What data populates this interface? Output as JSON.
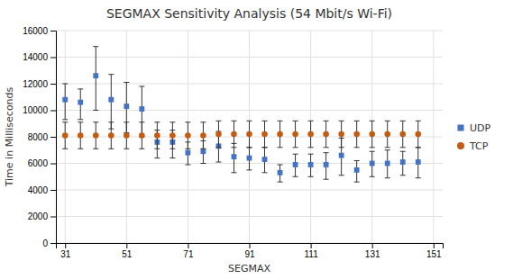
{
  "chart_data": {
    "type": "scatter",
    "title": "SEGMAX Sensitivity Analysis (54 Mbit/s Wi-Fi)",
    "xlabel": "SEGMAX",
    "ylabel": "Time in Milliseconds",
    "series": [
      {
        "name": "UDP",
        "color": "#4472C4",
        "marker": "square",
        "x": [
          31,
          36,
          41,
          46,
          51,
          56,
          61,
          66,
          71,
          76,
          81,
          86,
          91,
          96,
          101,
          106,
          111,
          116,
          121,
          126,
          131,
          136,
          141,
          146
        ],
        "values": [
          10800,
          10600,
          12600,
          10800,
          10300,
          10100,
          7600,
          7600,
          6800,
          6900,
          7300,
          6500,
          6400,
          6300,
          5300,
          5900,
          5900,
          5900,
          6600,
          5500,
          6000,
          6000,
          6100,
          6100
        ],
        "error_low": [
          1500,
          1300,
          2600,
          2200,
          2000,
          2100,
          1200,
          1200,
          900,
          900,
          1200,
          1200,
          900,
          1000,
          700,
          900,
          900,
          1100,
          1500,
          900,
          1000,
          1100,
          1000,
          1200
        ],
        "error_high": [
          1200,
          1000,
          2200,
          1900,
          1800,
          1700,
          900,
          900,
          800,
          800,
          1100,
          1000,
          800,
          900,
          600,
          800,
          800,
          900,
          1300,
          700,
          900,
          1000,
          800,
          1100
        ]
      },
      {
        "name": "TCP",
        "color": "#C55A11",
        "marker": "circle",
        "x": [
          31,
          36,
          41,
          46,
          51,
          56,
          61,
          66,
          71,
          76,
          81,
          86,
          91,
          96,
          101,
          106,
          111,
          116,
          121,
          126,
          131,
          136,
          141,
          146
        ],
        "values": [
          8100,
          8100,
          8100,
          8100,
          8100,
          8100,
          8100,
          8100,
          8100,
          8100,
          8200,
          8200,
          8200,
          8200,
          8200,
          8200,
          8200,
          8200,
          8200,
          8200,
          8200,
          8200,
          8200,
          8200
        ],
        "error": [
          1000,
          1000,
          1000,
          1000,
          1000,
          1000,
          1000,
          1000,
          1000,
          1000,
          1000,
          1000,
          1000,
          1000,
          1000,
          1000,
          1000,
          1000,
          1000,
          1000,
          1000,
          1000,
          1000,
          1000
        ]
      }
    ],
    "xlim": [
      28,
      154
    ],
    "ylim": [
      0,
      16000
    ],
    "xticks": [
      31,
      51,
      71,
      91,
      111,
      131,
      151
    ],
    "yticks": [
      0,
      2000,
      4000,
      6000,
      8000,
      10000,
      12000,
      14000,
      16000
    ],
    "grid": true,
    "legend": "right"
  }
}
